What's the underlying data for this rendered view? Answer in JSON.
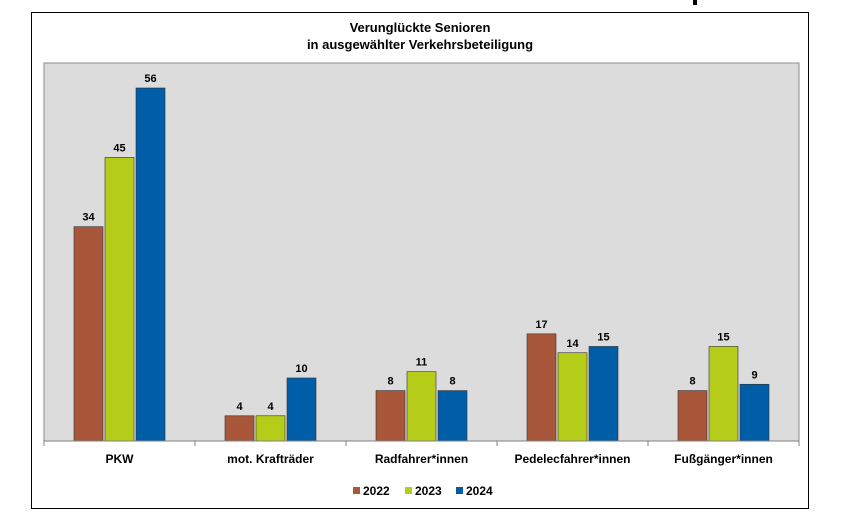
{
  "chart_data": {
    "type": "bar",
    "title": "Verunglückte Senioren",
    "subtitle": "in ausgewählter Verkehrsbeteiligung",
    "categories": [
      "PKW",
      "mot. Krafträder",
      "Radfahrer*innen",
      "Pedelecfahrer*innen",
      "Fußgänger*innen"
    ],
    "series": [
      {
        "name": "2022",
        "color": "#a9573b",
        "values": [
          34,
          4,
          8,
          17,
          8
        ]
      },
      {
        "name": "2023",
        "color": "#b5cc18",
        "values": [
          45,
          4,
          11,
          14,
          15
        ]
      },
      {
        "name": "2024",
        "color": "#005ea8",
        "values": [
          56,
          10,
          8,
          15,
          9
        ]
      }
    ],
    "ylim": [
      0,
      56
    ],
    "grid": false,
    "plot_background": "#dcdcdc",
    "legend_position": "bottom",
    "data_labels": true
  }
}
